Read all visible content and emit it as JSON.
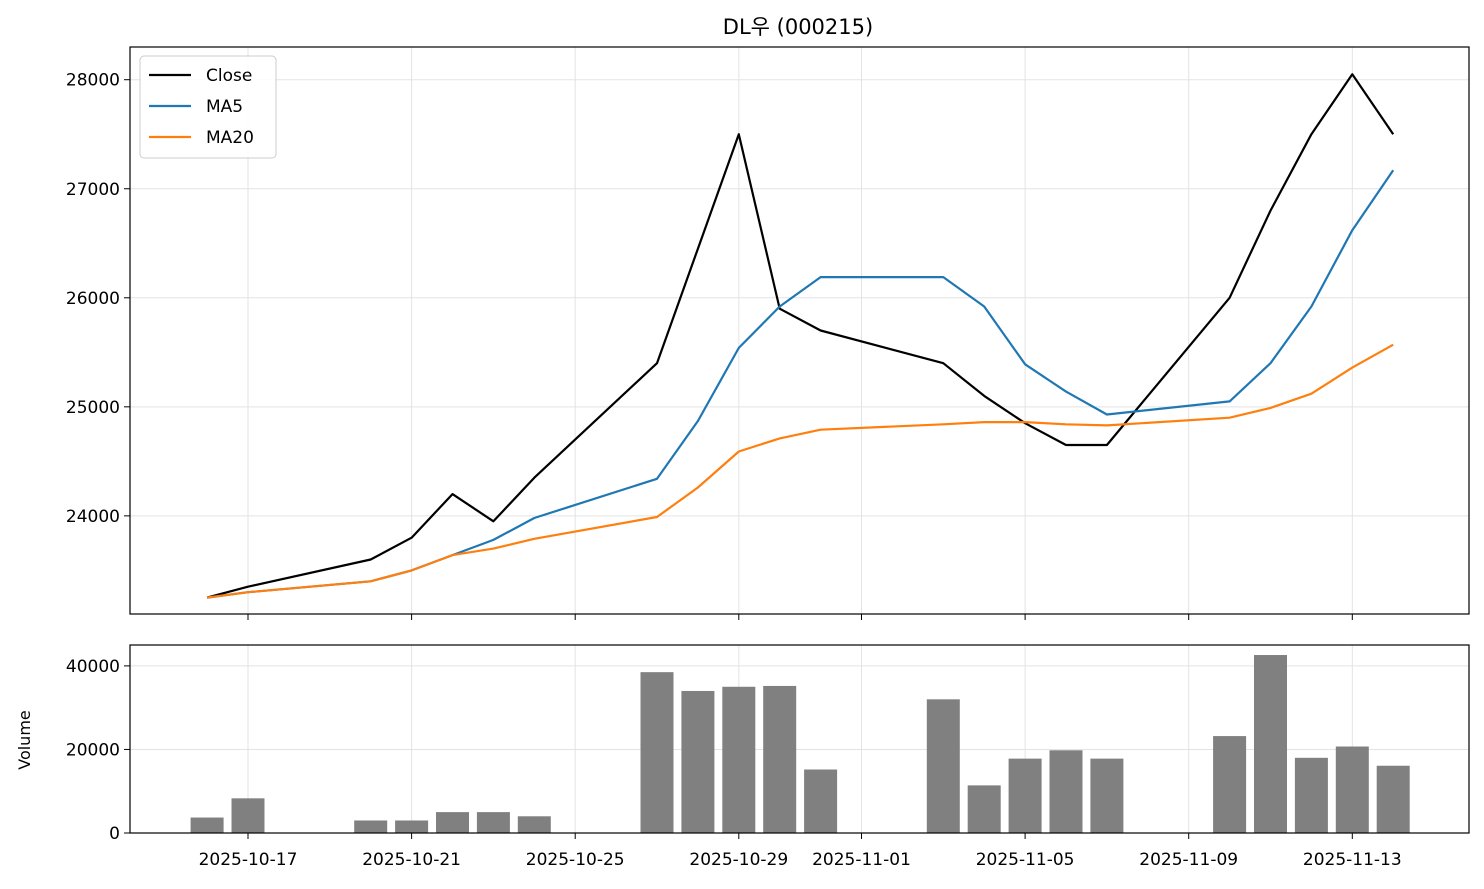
{
  "chart_data": {
    "type": "line",
    "title": "DL우 (000215)",
    "x": [
      "2025-10-16",
      "2025-10-17",
      "2025-10-20",
      "2025-10-21",
      "2025-10-22",
      "2025-10-23",
      "2025-10-24",
      "2025-10-27",
      "2025-10-28",
      "2025-10-29",
      "2025-10-30",
      "2025-10-31",
      "2025-11-03",
      "2025-11-04",
      "2025-11-05",
      "2025-11-06",
      "2025-11-07",
      "2025-11-10",
      "2025-11-11",
      "2025-11-12",
      "2025-11-13",
      "2025-11-14"
    ],
    "x_ticks": [
      "2025-10-17",
      "2025-10-21",
      "2025-10-25",
      "2025-10-29",
      "2025-11-01",
      "2025-11-05",
      "2025-11-09",
      "2025-11-13"
    ],
    "price_panel": {
      "ylim": [
        23100,
        28300
      ],
      "yticks": [
        24000,
        25000,
        26000,
        27000,
        28000
      ],
      "grid": true,
      "legend_position": "top-left",
      "series": [
        {
          "name": "Close",
          "color": "#000000",
          "values": [
            23250,
            23350,
            23600,
            23800,
            24200,
            23950,
            24350,
            25400,
            26450,
            27500,
            25900,
            25700,
            25400,
            25100,
            24850,
            24650,
            24650,
            26000,
            26800,
            27500,
            28050,
            27500
          ]
        },
        {
          "name": "MA5",
          "color": "#1f77b4",
          "values": [
            23250,
            23300,
            23400,
            23500,
            23640,
            23780,
            23980,
            24340,
            24870,
            25540,
            25920,
            26190,
            26190,
            25920,
            25390,
            25140,
            24930,
            25050,
            25400,
            25920,
            26620,
            27170
          ]
        },
        {
          "name": "MA20",
          "color": "#ff7f0e",
          "values": [
            23250,
            23300,
            23400,
            23500,
            23640,
            23700,
            23790,
            23990,
            24260,
            24590,
            24710,
            24790,
            24840,
            24860,
            24860,
            24840,
            24830,
            24900,
            24990,
            25120,
            25360,
            25570
          ]
        }
      ]
    },
    "volume_panel": {
      "ylabel": "Volume",
      "ylim": [
        0,
        45000
      ],
      "yticks": [
        0,
        20000,
        40000
      ],
      "grid": true,
      "bar_color": "#808080",
      "values": [
        3700,
        8300,
        3000,
        3000,
        5000,
        5000,
        4000,
        38500,
        34000,
        35000,
        35200,
        15200,
        32000,
        11400,
        17800,
        19800,
        17800,
        23200,
        42600,
        18000,
        20700,
        16100
      ]
    }
  }
}
